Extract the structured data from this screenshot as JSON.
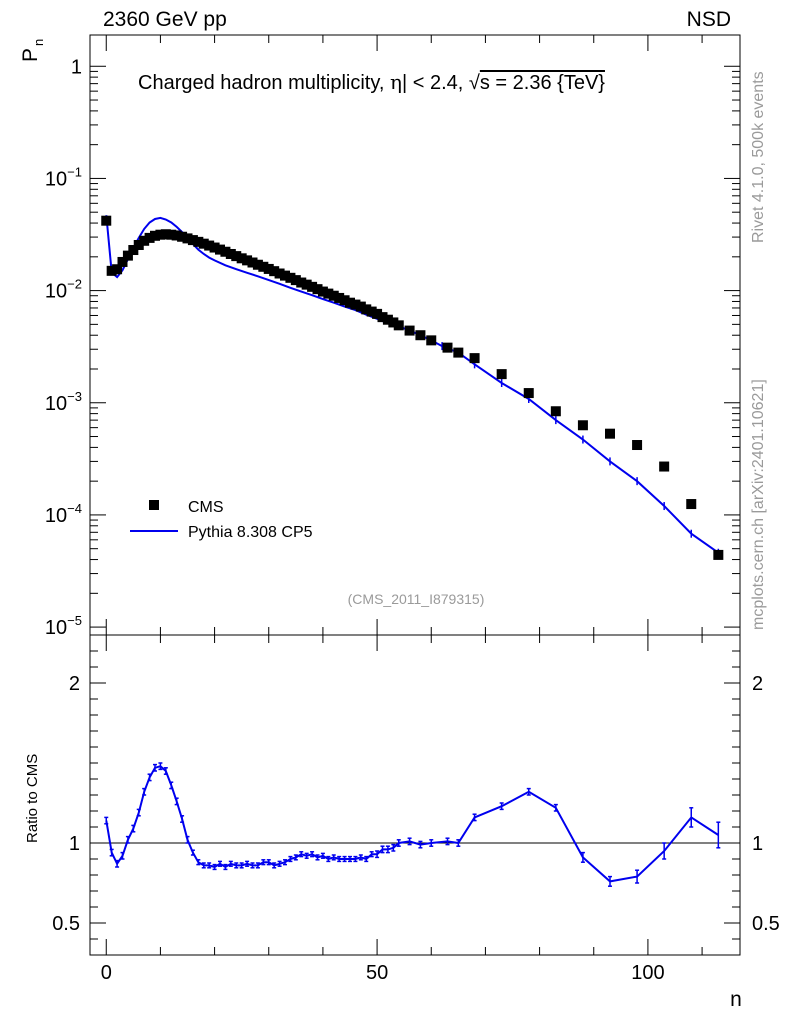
{
  "header": {
    "left_label": "2360 GeV pp",
    "right_label": "NSD"
  },
  "side_labels": {
    "rivet": "Rivet 4.1.0,  500k events",
    "site": "mcplots.cern.ch [arXiv:2401.10621]"
  },
  "colors": {
    "data_marker": "#000000",
    "mc_line": "#0000ee",
    "side_text": "#9a9a9a"
  },
  "chart_data": [
    {
      "type": "scatter",
      "title_parts": {
        "prefix": "Charged hadron multiplicity, ",
        "eta": "η",
        "cut": "| < 2.4, ",
        "sqrt": "√",
        "s_eq": "s = 2.36 {TeV}"
      },
      "analysis_label": "(CMS_2011_I879315)",
      "xlabel": "n",
      "ylabel": "P",
      "ylabel_sub": "n",
      "yscale": "log",
      "xlim": [
        -3,
        117
      ],
      "ylim": [
        8.5e-06,
        1.9
      ],
      "y_ticks": [
        {
          "value": 1,
          "base": "1",
          "exp": ""
        },
        {
          "value": 0.1,
          "base": "10",
          "exp": "−1"
        },
        {
          "value": 0.01,
          "base": "10",
          "exp": "−2"
        },
        {
          "value": 0.001,
          "base": "10",
          "exp": "−3"
        },
        {
          "value": 0.0001,
          "base": "10",
          "exp": "−4"
        },
        {
          "value": 1e-05,
          "base": "10",
          "exp": "−5"
        }
      ],
      "legend": [
        {
          "label": "CMS",
          "marker": "square"
        },
        {
          "label": "Pythia 8.308 CP5",
          "marker": "line"
        }
      ],
      "series": [
        {
          "name": "CMS",
          "x": [
            0,
            1,
            2,
            3,
            4,
            5,
            6,
            7,
            8,
            9,
            10,
            11,
            12,
            13,
            14,
            15,
            16,
            17,
            18,
            19,
            20,
            21,
            22,
            23,
            24,
            25,
            26,
            27,
            28,
            29,
            30,
            31,
            32,
            33,
            34,
            35,
            36,
            37,
            38,
            39,
            40,
            41,
            42,
            43,
            44,
            45,
            46,
            47,
            48,
            49,
            50,
            51,
            52,
            53,
            54,
            56,
            58,
            60,
            63,
            65,
            68,
            73,
            78,
            83,
            88,
            93,
            98,
            103,
            108,
            113
          ],
          "values": [
            0.042,
            0.015,
            0.0155,
            0.018,
            0.0205,
            0.023,
            0.0255,
            0.0278,
            0.0295,
            0.0308,
            0.0315,
            0.0318,
            0.0315,
            0.031,
            0.0302,
            0.0292,
            0.0282,
            0.0272,
            0.0262,
            0.0252,
            0.0242,
            0.0232,
            0.0222,
            0.0212,
            0.0203,
            0.0194,
            0.0186,
            0.0178,
            0.017,
            0.0163,
            0.0156,
            0.0149,
            0.0142,
            0.0136,
            0.013,
            0.0124,
            0.0118,
            0.0113,
            0.0108,
            0.0103,
            0.0098,
            0.0094,
            0.009,
            0.0086,
            0.0082,
            0.0078,
            0.0075,
            0.0072,
            0.0068,
            0.0065,
            0.0062,
            0.0058,
            0.0055,
            0.0052,
            0.0049,
            0.0044,
            0.004,
            0.0036,
            0.0031,
            0.0028,
            0.0025,
            0.0018,
            0.00122,
            0.00084,
            0.00063,
            0.00053,
            0.00042,
            0.00027,
            0.000125,
            4.4e-05
          ]
        },
        {
          "name": "Pythia 8.308 CP5",
          "x": [
            0,
            1,
            2,
            3,
            4,
            5,
            6,
            7,
            8,
            9,
            10,
            11,
            12,
            13,
            14,
            15,
            16,
            17,
            18,
            19,
            20,
            22,
            24,
            26,
            28,
            30,
            32,
            34,
            36,
            38,
            40,
            42,
            44,
            46,
            48,
            50,
            52,
            54,
            56,
            58,
            60,
            62,
            65,
            68,
            73,
            78,
            83,
            88,
            93,
            98,
            103,
            108,
            113
          ],
          "values": [
            0.047,
            0.0145,
            0.0132,
            0.0152,
            0.019,
            0.024,
            0.0295,
            0.0355,
            0.0405,
            0.0435,
            0.0445,
            0.043,
            0.0405,
            0.037,
            0.0332,
            0.0295,
            0.026,
            0.0232,
            0.0212,
            0.0197,
            0.0186,
            0.0168,
            0.0155,
            0.0144,
            0.0134,
            0.0124,
            0.0115,
            0.0106,
            0.0098,
            0.0091,
            0.0084,
            0.0078,
            0.0072,
            0.0067,
            0.0061,
            0.0056,
            0.0051,
            0.0048,
            0.0044,
            0.004,
            0.0036,
            0.0032,
            0.0028,
            0.0022,
            0.0015,
            0.00108,
            0.0007,
            0.00047,
            0.0003,
            0.0002,
            0.00012,
            6.8e-05,
            4.6e-05
          ]
        }
      ]
    },
    {
      "type": "line",
      "title": "",
      "xlabel": "n",
      "ylabel": "Ratio to CMS",
      "xlim": [
        -3,
        117
      ],
      "ylim": [
        0.3,
        2.3
      ],
      "reference_line": 1,
      "x_ticks": [
        0,
        50,
        100
      ],
      "y_ticks": [
        0.5,
        1,
        2
      ],
      "series": [
        {
          "name": "Pythia 8.308 CP5 / CMS",
          "x": [
            0,
            1,
            2,
            3,
            4,
            5,
            6,
            7,
            8,
            9,
            10,
            11,
            12,
            13,
            14,
            15,
            16,
            17,
            18,
            19,
            20,
            21,
            22,
            23,
            24,
            25,
            26,
            27,
            28,
            29,
            30,
            31,
            32,
            33,
            34,
            35,
            36,
            37,
            38,
            39,
            40,
            41,
            42,
            43,
            44,
            45,
            46,
            47,
            48,
            49,
            50,
            51,
            52,
            53,
            54,
            56,
            58,
            60,
            63,
            65,
            68,
            73,
            78,
            83,
            88,
            93,
            98,
            103,
            108,
            113
          ],
          "values": [
            1.14,
            0.94,
            0.87,
            0.92,
            1.02,
            1.09,
            1.19,
            1.32,
            1.41,
            1.47,
            1.48,
            1.45,
            1.36,
            1.26,
            1.15,
            1.02,
            0.94,
            0.88,
            0.86,
            0.86,
            0.85,
            0.87,
            0.85,
            0.87,
            0.86,
            0.86,
            0.87,
            0.86,
            0.86,
            0.88,
            0.88,
            0.86,
            0.87,
            0.88,
            0.9,
            0.91,
            0.93,
            0.92,
            0.93,
            0.91,
            0.92,
            0.9,
            0.91,
            0.9,
            0.9,
            0.9,
            0.9,
            0.91,
            0.9,
            0.93,
            0.93,
            0.96,
            0.96,
            0.97,
            1.0,
            1.01,
            0.99,
            1.0,
            1.01,
            1.0,
            1.16,
            1.23,
            1.32,
            1.22,
            0.91,
            0.76,
            0.79,
            0.95,
            1.16,
            1.05
          ],
          "errors": [
            0.02,
            0.02,
            0.02,
            0.02,
            0.02,
            0.02,
            0.02,
            0.02,
            0.02,
            0.02,
            0.02,
            0.02,
            0.02,
            0.02,
            0.02,
            0.02,
            0.015,
            0.015,
            0.015,
            0.015,
            0.015,
            0.015,
            0.015,
            0.015,
            0.015,
            0.015,
            0.015,
            0.015,
            0.015,
            0.015,
            0.015,
            0.015,
            0.015,
            0.015,
            0.015,
            0.015,
            0.015,
            0.015,
            0.015,
            0.015,
            0.015,
            0.015,
            0.015,
            0.015,
            0.015,
            0.015,
            0.015,
            0.015,
            0.015,
            0.015,
            0.02,
            0.02,
            0.02,
            0.02,
            0.02,
            0.02,
            0.02,
            0.02,
            0.02,
            0.02,
            0.02,
            0.02,
            0.02,
            0.02,
            0.03,
            0.03,
            0.04,
            0.05,
            0.06,
            0.08
          ]
        }
      ]
    }
  ]
}
